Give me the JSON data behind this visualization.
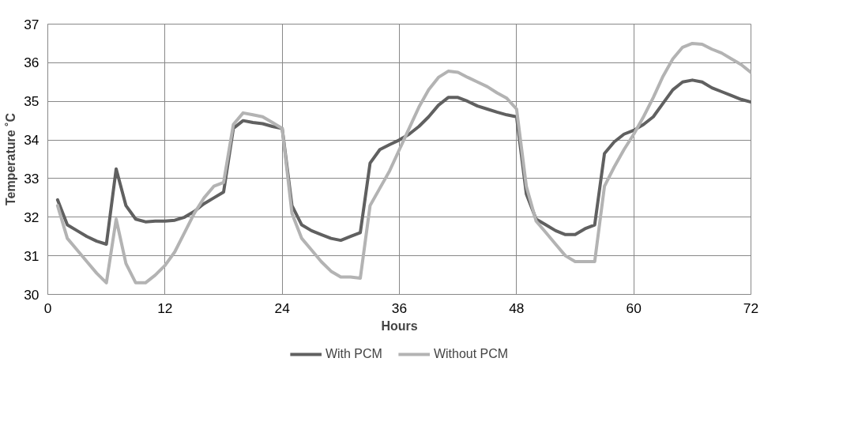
{
  "chart_data": {
    "type": "line",
    "xlabel": "Hours",
    "ylabel": "Temperature ˚C",
    "x": [
      1,
      2,
      3,
      4,
      5,
      6,
      7,
      8,
      9,
      10,
      11,
      12,
      13,
      14,
      15,
      16,
      17,
      18,
      19,
      20,
      21,
      22,
      23,
      24,
      25,
      26,
      27,
      28,
      29,
      30,
      31,
      32,
      33,
      34,
      35,
      36,
      37,
      38,
      39,
      40,
      41,
      42,
      43,
      44,
      45,
      46,
      47,
      48,
      49,
      50,
      51,
      52,
      53,
      54,
      55,
      56,
      57,
      58,
      59,
      60,
      61,
      62,
      63,
      64,
      65,
      66,
      67,
      68,
      69,
      70,
      71,
      72
    ],
    "series": [
      {
        "name": "With PCM",
        "color": "#606060",
        "values": [
          32.45,
          31.8,
          31.65,
          31.5,
          31.38,
          31.3,
          33.25,
          32.3,
          31.95,
          31.88,
          31.9,
          31.9,
          31.92,
          32.0,
          32.15,
          32.35,
          32.5,
          32.65,
          34.3,
          34.5,
          34.45,
          34.42,
          34.35,
          34.3,
          32.3,
          31.8,
          31.65,
          31.55,
          31.45,
          31.4,
          31.5,
          31.6,
          33.4,
          33.75,
          33.88,
          34.0,
          34.15,
          34.35,
          34.6,
          34.9,
          35.1,
          35.1,
          35.0,
          34.88,
          34.8,
          34.72,
          34.65,
          34.6,
          32.6,
          31.95,
          31.8,
          31.65,
          31.55,
          31.55,
          31.7,
          31.8,
          33.65,
          33.95,
          34.15,
          34.25,
          34.4,
          34.6,
          34.95,
          35.3,
          35.5,
          35.55,
          35.5,
          35.35,
          35.25,
          35.15,
          35.05,
          34.98
        ]
      },
      {
        "name": "Without PCM",
        "color": "#b3b3b3",
        "values": [
          32.3,
          31.45,
          31.15,
          30.85,
          30.55,
          30.3,
          31.95,
          30.8,
          30.3,
          30.3,
          30.5,
          30.75,
          31.1,
          31.6,
          32.1,
          32.5,
          32.8,
          32.9,
          34.4,
          34.7,
          34.65,
          34.6,
          34.45,
          34.3,
          32.1,
          31.45,
          31.15,
          30.85,
          30.6,
          30.45,
          30.45,
          30.42,
          32.3,
          32.75,
          33.2,
          33.75,
          34.3,
          34.85,
          35.3,
          35.62,
          35.78,
          35.75,
          35.62,
          35.5,
          35.38,
          35.22,
          35.08,
          34.8,
          32.8,
          31.9,
          31.6,
          31.3,
          31.0,
          30.85,
          30.85,
          30.85,
          32.8,
          33.3,
          33.75,
          34.15,
          34.6,
          35.1,
          35.65,
          36.1,
          36.4,
          36.5,
          36.48,
          36.35,
          36.25,
          36.1,
          35.95,
          35.75
        ]
      }
    ],
    "xlim": [
      0,
      72
    ],
    "ylim": [
      30,
      37
    ],
    "xticks": [
      0,
      12,
      24,
      36,
      48,
      60,
      72
    ],
    "yticks": [
      30,
      31,
      32,
      33,
      34,
      35,
      36,
      37
    ],
    "grid": true,
    "legend": "bottom",
    "line_style": "solid",
    "marker": "none"
  }
}
